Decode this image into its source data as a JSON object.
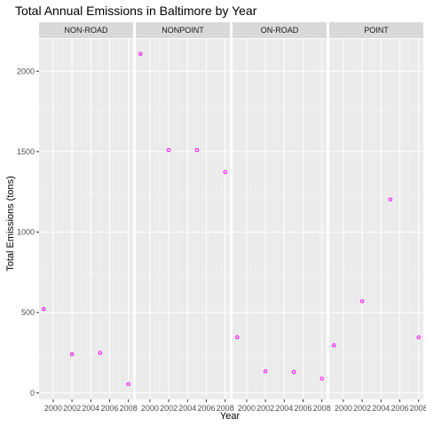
{
  "chart_data": {
    "type": "scatter",
    "title": "Total Annual Emissions in Baltimore by Year",
    "xlabel": "Year",
    "ylabel": "Total Emissions (tons)",
    "x_ticks": [
      "2000",
      "2002",
      "2004",
      "2006",
      "2008"
    ],
    "y_ticks": [
      "0",
      "500",
      "1000",
      "1500",
      "2000"
    ],
    "xlim": [
      1998.5,
      2008.5
    ],
    "ylim": [
      -40,
      2200
    ],
    "point_color": "#FF00FF",
    "facets": [
      {
        "name": "NON-ROAD",
        "x": [
          1999,
          2002,
          2005,
          2008
        ],
        "y": [
          522,
          241,
          249,
          55
        ]
      },
      {
        "name": "NONPOINT",
        "x": [
          1999,
          2002,
          2005,
          2008
        ],
        "y": [
          2108,
          1510,
          1510,
          1373
        ]
      },
      {
        "name": "ON-ROAD",
        "x": [
          1999,
          2002,
          2005,
          2008
        ],
        "y": [
          346,
          134,
          130,
          89
        ]
      },
      {
        "name": "POINT",
        "x": [
          1999,
          2002,
          2005,
          2008
        ],
        "y": [
          296,
          570,
          1203,
          345
        ]
      }
    ]
  }
}
